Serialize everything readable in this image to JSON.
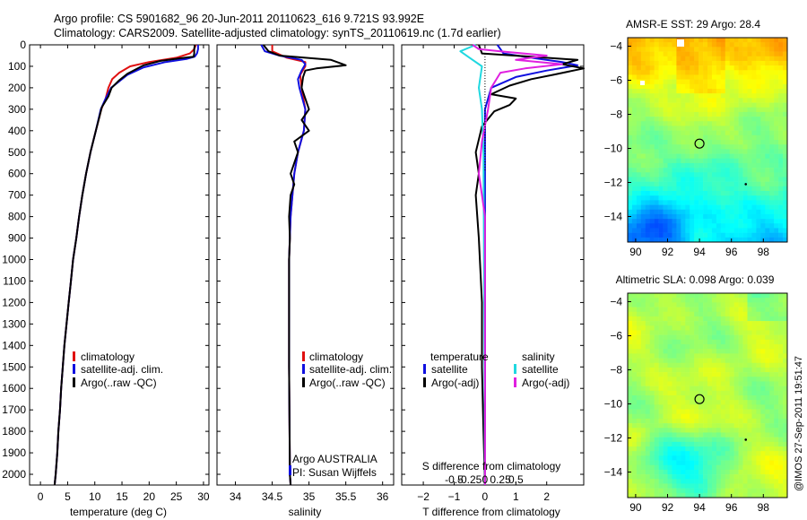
{
  "titles": {
    "line1": "Argo profile: CS 5901682_96 20-Jun-2011 20110623_616 9.721S 93.992E",
    "line2": "Climatology: CARS2009. Satellite-adjusted climatology: synTS_20110619.nc (1.7d earlier)"
  },
  "side_text": "@IMOS 27-Sep-2011 19:51:47",
  "colors": {
    "climatology": "#e01010",
    "satellite": "#1010e0",
    "argo": "#000000",
    "sat_salinity": "#20d8e0",
    "argo_salinity": "#e020e0"
  },
  "panel_temp": {
    "xlabel": "temperature (deg C)",
    "legend": [
      "climatology",
      "satellite-adj. clim.",
      "Argo(..raw -QC)"
    ]
  },
  "panel_sal": {
    "xlabel": "salinity",
    "legend": [
      "climatology",
      "satellite-adj. clim.",
      "Argo(..raw -QC)"
    ],
    "credit1": "Argo AUSTRALIA",
    "credit2": "PI: Susan Wijffels"
  },
  "panel_diff": {
    "xlabel_bottom": "T difference from climatology",
    "xlabel_top": "S difference from climatology",
    "legend_t_head": "temperature",
    "legend_s_head": "salinity",
    "legend_t": [
      "satellite",
      "Argo(-adj)"
    ],
    "legend_s": [
      "satellite",
      "Argo(-adj)"
    ]
  },
  "map_sst": {
    "title": "AMSR-E SST: 29 Argo: 28.4"
  },
  "map_sla": {
    "title": "Altimetric SLA: 0.098 Argo: 0.039"
  },
  "chart_data": [
    {
      "type": "line",
      "id": "temperature_profile",
      "xlabel": "temperature (deg C)",
      "ylabel": "",
      "xlim": [
        -2,
        31
      ],
      "ylim": [
        2050,
        0
      ],
      "xticks": [
        0,
        5,
        10,
        15,
        20,
        25,
        30
      ],
      "yticks": [
        0,
        100,
        200,
        300,
        400,
        500,
        600,
        700,
        800,
        900,
        1000,
        1100,
        1200,
        1300,
        1400,
        1500,
        1600,
        1700,
        1800,
        1900,
        2000
      ],
      "series": [
        {
          "name": "climatology",
          "color": "#e01010",
          "points": [
            [
              28.6,
              0
            ],
            [
              28.3,
              20
            ],
            [
              27.5,
              40
            ],
            [
              25,
              60
            ],
            [
              20,
              80
            ],
            [
              16.5,
              100
            ],
            [
              14.5,
              130
            ],
            [
              13.2,
              160
            ],
            [
              12.5,
              200
            ],
            [
              12,
              250
            ],
            [
              11.2,
              300
            ],
            [
              10.2,
              400
            ],
            [
              9.2,
              500
            ],
            [
              8.4,
              600
            ],
            [
              7.7,
              700
            ],
            [
              7.1,
              800
            ],
            [
              6.6,
              900
            ],
            [
              6,
              1000
            ],
            [
              5.6,
              1100
            ],
            [
              5.2,
              1200
            ],
            [
              4.8,
              1300
            ],
            [
              4.4,
              1400
            ],
            [
              4.1,
              1500
            ],
            [
              3.8,
              1600
            ],
            [
              3.6,
              1700
            ],
            [
              3.3,
              1800
            ],
            [
              3.1,
              1900
            ],
            [
              2.8,
              2000
            ],
            [
              2.6,
              2050
            ]
          ]
        },
        {
          "name": "satellite-adj. clim.",
          "color": "#1010e0",
          "points": [
            [
              29,
              0
            ],
            [
              29,
              20
            ],
            [
              28.8,
              40
            ],
            [
              28.4,
              55
            ],
            [
              27,
              65
            ],
            [
              23,
              80
            ],
            [
              19,
              105
            ],
            [
              16,
              140
            ],
            [
              14.5,
              170
            ],
            [
              13,
              200
            ],
            [
              12,
              250
            ],
            [
              11.1,
              300
            ],
            [
              10.2,
              400
            ],
            [
              9.2,
              500
            ],
            [
              8.4,
              600
            ],
            [
              7.7,
              700
            ],
            [
              7.1,
              800
            ],
            [
              6.6,
              900
            ],
            [
              6,
              1000
            ],
            [
              5.6,
              1100
            ],
            [
              5.2,
              1200
            ],
            [
              4.8,
              1300
            ],
            [
              4.4,
              1400
            ],
            [
              4.1,
              1500
            ],
            [
              3.8,
              1600
            ],
            [
              3.6,
              1700
            ],
            [
              3.3,
              1800
            ],
            [
              3.1,
              1900
            ],
            [
              2.8,
              2000
            ],
            [
              2.6,
              2050
            ]
          ]
        },
        {
          "name": "Argo(..raw -QC)",
          "color": "#000000",
          "points": [
            [
              28.4,
              0
            ],
            [
              28.3,
              20
            ],
            [
              28.3,
              40
            ],
            [
              28.2,
              55
            ],
            [
              26,
              62
            ],
            [
              22,
              75
            ],
            [
              19,
              95
            ],
            [
              16,
              135
            ],
            [
              14.5,
              165
            ],
            [
              13.1,
              200
            ],
            [
              12.5,
              240
            ],
            [
              11.3,
              290
            ],
            [
              10.2,
              400
            ],
            [
              9.2,
              500
            ],
            [
              8.4,
              600
            ],
            [
              7.7,
              700
            ],
            [
              7.1,
              800
            ],
            [
              6.6,
              900
            ],
            [
              6,
              1000
            ],
            [
              5.6,
              1100
            ],
            [
              5.2,
              1200
            ],
            [
              4.8,
              1300
            ],
            [
              4.4,
              1400
            ],
            [
              4.1,
              1500
            ],
            [
              3.8,
              1600
            ],
            [
              3.6,
              1700
            ],
            [
              3.3,
              1800
            ],
            [
              3.1,
              1900
            ],
            [
              2.8,
              2000
            ],
            [
              2.6,
              2050
            ]
          ]
        }
      ]
    },
    {
      "type": "line",
      "id": "salinity_profile",
      "xlabel": "salinity",
      "ylabel": "",
      "xlim": [
        33.75,
        36.15
      ],
      "ylim": [
        2050,
        0
      ],
      "xticks": [
        34,
        34.5,
        35,
        35.5,
        36
      ],
      "series": [
        {
          "name": "climatology",
          "color": "#e01010",
          "points": [
            [
              34.5,
              0
            ],
            [
              34.5,
              30
            ],
            [
              34.7,
              60
            ],
            [
              34.95,
              80
            ],
            [
              34.95,
              100
            ],
            [
              34.88,
              140
            ],
            [
              34.9,
              200
            ],
            [
              34.95,
              300
            ],
            [
              34.93,
              400
            ],
            [
              34.85,
              500
            ],
            [
              34.8,
              600
            ],
            [
              34.75,
              800
            ],
            [
              34.73,
              1000
            ],
            [
              34.73,
              1500
            ],
            [
              34.74,
              2000
            ],
            [
              34.75,
              2050
            ]
          ]
        },
        {
          "name": "satellite-adj. clim.",
          "color": "#1010e0",
          "points": [
            [
              34.35,
              0
            ],
            [
              34.4,
              30
            ],
            [
              34.6,
              50
            ],
            [
              34.9,
              70
            ],
            [
              34.95,
              90
            ],
            [
              34.9,
              120
            ],
            [
              34.85,
              160
            ],
            [
              34.87,
              200
            ],
            [
              34.95,
              300
            ],
            [
              34.93,
              400
            ],
            [
              34.85,
              500
            ],
            [
              34.8,
              600
            ],
            [
              34.75,
              800
            ],
            [
              34.73,
              1000
            ],
            [
              34.73,
              1500
            ],
            [
              34.74,
              2000
            ],
            [
              34.75,
              2050
            ]
          ]
        },
        {
          "name": "Argo(..raw -QC)",
          "color": "#000000",
          "points": [
            [
              34.38,
              0
            ],
            [
              34.45,
              30
            ],
            [
              34.6,
              50
            ],
            [
              35.3,
              70
            ],
            [
              35.5,
              95
            ],
            [
              35.1,
              110
            ],
            [
              34.95,
              120
            ],
            [
              34.92,
              150
            ],
            [
              34.9,
              200
            ],
            [
              34.95,
              250
            ],
            [
              35.0,
              300
            ],
            [
              34.9,
              350
            ],
            [
              35.0,
              400
            ],
            [
              34.8,
              450
            ],
            [
              34.85,
              500
            ],
            [
              34.75,
              600
            ],
            [
              34.8,
              650
            ],
            [
              34.75,
              700
            ],
            [
              34.73,
              800
            ],
            [
              34.74,
              900
            ],
            [
              34.73,
              1000
            ],
            [
              34.73,
              1500
            ],
            [
              34.74,
              2000
            ],
            [
              34.75,
              2050
            ]
          ]
        }
      ]
    },
    {
      "type": "line",
      "id": "difference_profile",
      "xlabel": "T difference from climatology",
      "x2label": "S difference from climatology",
      "xlim": [
        -2.7,
        3.2
      ],
      "ylim": [
        2050,
        0
      ],
      "xticks": [
        -2,
        -1,
        0,
        1,
        2
      ],
      "x2ticks": [
        "-0.5",
        "-0.25",
        "0",
        "0.25",
        "0.5"
      ],
      "series": [
        {
          "name": "satellite (temperature)",
          "color": "#1010e0",
          "points": [
            [
              0.4,
              0
            ],
            [
              0.6,
              40
            ],
            [
              1.5,
              60
            ],
            [
              2.5,
              80
            ],
            [
              3.0,
              95
            ],
            [
              2.0,
              120
            ],
            [
              1,
              150
            ],
            [
              0.2,
              200
            ],
            [
              0,
              300
            ],
            [
              0,
              2050
            ]
          ]
        },
        {
          "name": "Argo(-adj) (temperature)",
          "color": "#000000",
          "points": [
            [
              -0.2,
              0
            ],
            [
              -0.1,
              40
            ],
            [
              1.5,
              55
            ],
            [
              3.0,
              70
            ],
            [
              2.5,
              90
            ],
            [
              3.2,
              110
            ],
            [
              2.2,
              140
            ],
            [
              1.5,
              160
            ],
            [
              0.8,
              190
            ],
            [
              0.2,
              230
            ],
            [
              1.0,
              250
            ],
            [
              0.8,
              280
            ],
            [
              0.3,
              310
            ],
            [
              -0.1,
              380
            ],
            [
              -0.3,
              500
            ],
            [
              -0.2,
              600
            ],
            [
              -0.3,
              700
            ],
            [
              -0.2,
              900
            ],
            [
              -0.1,
              1200
            ],
            [
              -0.1,
              1500
            ],
            [
              -0.05,
              1800
            ],
            [
              0,
              2050
            ]
          ]
        },
        {
          "name": "satellite (salinity)",
          "color": "#20d8e0",
          "points": [
            [
              -0.3,
              0
            ],
            [
              -0.8,
              30
            ],
            [
              -0.5,
              60
            ],
            [
              -0.1,
              100
            ],
            [
              -0.2,
              200
            ],
            [
              -0.1,
              300
            ],
            [
              -0.05,
              500
            ],
            [
              0,
              2050
            ]
          ]
        },
        {
          "name": "Argo(-adj) (salinity)",
          "color": "#e020e0",
          "points": [
            [
              -0.4,
              0
            ],
            [
              -0.2,
              20
            ],
            [
              0.5,
              30
            ],
            [
              2.0,
              50
            ],
            [
              1.0,
              70
            ],
            [
              2.5,
              90
            ],
            [
              1.3,
              110
            ],
            [
              0.5,
              130
            ],
            [
              0.2,
              200
            ],
            [
              0.1,
              300
            ],
            [
              -0.1,
              450
            ],
            [
              -0.2,
              600
            ],
            [
              -0.1,
              700
            ],
            [
              0,
              800
            ],
            [
              0,
              2050
            ]
          ]
        }
      ]
    },
    {
      "type": "heatmap",
      "id": "sst_map",
      "title": "AMSR-E SST: 29 Argo: 28.4",
      "xlim": [
        89.5,
        99.5
      ],
      "ylim": [
        -15.5,
        -3.5
      ],
      "xticks": [
        90,
        92,
        94,
        96,
        98
      ],
      "yticks": [
        -4,
        -6,
        -8,
        -10,
        -12,
        -14
      ],
      "argo_position": [
        94,
        -9.72
      ]
    },
    {
      "type": "heatmap",
      "id": "sla_map",
      "title": "Altimetric SLA: 0.098 Argo: 0.039",
      "xlim": [
        89.5,
        99.5
      ],
      "ylim": [
        -15.5,
        -3.5
      ],
      "xticks": [
        90,
        92,
        94,
        96,
        98
      ],
      "yticks": [
        -4,
        -6,
        -8,
        -10,
        -12,
        -14
      ],
      "argo_position": [
        94,
        -9.72
      ]
    }
  ]
}
